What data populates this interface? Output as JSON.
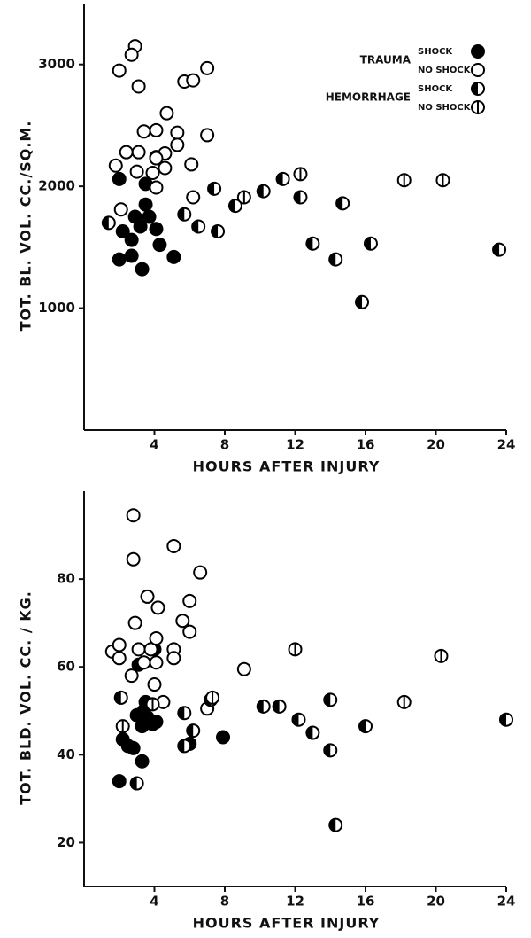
{
  "chart_data": [
    {
      "type": "scatter",
      "ylabel": "TOT. BL. VOL.   CC./SQ.M.",
      "xlabel": "HOURS AFTER INJURY",
      "xlim": [
        0,
        24
      ],
      "ylim": [
        0,
        3500
      ],
      "xticks": [
        4,
        8,
        12,
        16,
        20,
        24
      ],
      "yticks": [
        1000,
        2000,
        3000
      ],
      "legend": {
        "position": "upper right",
        "groups": [
          {
            "label": "TRAUMA",
            "entries": [
              "SHOCK",
              "NO SHOCK"
            ]
          },
          {
            "label": "HEMORRHAGE",
            "entries": [
              "SHOCK",
              "NO SHOCK"
            ]
          }
        ]
      },
      "series": [
        {
          "marker": "filled",
          "color": "#000000",
          "x": [
            2.0,
            2.2,
            2.7,
            2.9,
            3.2,
            3.3,
            2.0,
            3.5,
            3.5,
            3.7,
            4.1,
            4.1,
            4.3,
            5.1,
            2.7
          ],
          "values": [
            2060,
            1630,
            1430,
            1750,
            1670,
            1320,
            1400,
            2020,
            1850,
            1750,
            2240,
            1650,
            1520,
            1420,
            1560
          ]
        },
        {
          "marker": "open",
          "color": "#000000",
          "x": [
            2.9,
            2.7,
            2.0,
            3.1,
            4.7,
            5.3,
            4.1,
            3.4,
            5.7,
            6.2,
            7.0,
            7.0,
            5.3,
            4.6,
            4.1,
            3.1,
            2.4,
            1.8,
            3.0,
            4.6,
            6.1,
            4.1,
            6.2,
            2.1,
            3.9
          ],
          "values": [
            3150,
            3080,
            2950,
            2820,
            2600,
            2440,
            2460,
            2450,
            2860,
            2870,
            2970,
            2420,
            2340,
            2270,
            2230,
            2280,
            2280,
            2170,
            2120,
            2150,
            2180,
            1990,
            1910,
            1810,
            2110
          ]
        },
        {
          "marker": "half",
          "color": "#000000",
          "x": [
            1.4,
            5.7,
            6.5,
            7.6,
            7.4,
            8.6,
            10.2,
            11.3,
            12.3,
            13.0,
            14.3,
            14.7,
            16.3,
            15.8,
            23.6
          ],
          "values": [
            1700,
            1770,
            1670,
            1630,
            1980,
            1840,
            1960,
            2060,
            1910,
            1530,
            1400,
            1860,
            1530,
            1050,
            1480
          ]
        },
        {
          "marker": "bar",
          "color": "#000000",
          "x": [
            9.1,
            12.3,
            18.2,
            20.4
          ],
          "values": [
            1910,
            2100,
            2050,
            2050
          ]
        }
      ]
    },
    {
      "type": "scatter",
      "ylabel": "TOT. BLD. VOL.   CC. / KG.",
      "xlabel": "HOURS AFTER INJURY",
      "xlim": [
        0,
        24
      ],
      "ylim": [
        10,
        100
      ],
      "xticks": [
        4,
        8,
        12,
        16,
        20,
        24
      ],
      "yticks": [
        20,
        40,
        60,
        80
      ],
      "series": [
        {
          "marker": "filled",
          "color": "#000000",
          "x": [
            2.0,
            2.2,
            2.8,
            2.5,
            3.1,
            3.3,
            3.3,
            3.4,
            3.5,
            3.9,
            3.6,
            4.0,
            4.1,
            3.0,
            6.0,
            7.9
          ],
          "values": [
            34,
            43.5,
            41.5,
            42,
            60.5,
            38.5,
            46.5,
            50,
            52,
            47,
            48.5,
            64,
            47.5,
            49,
            42.5,
            44
          ]
        },
        {
          "marker": "open",
          "color": "#000000",
          "x": [
            2.8,
            2.8,
            5.1,
            6.6,
            3.6,
            4.2,
            6.0,
            5.6,
            6.0,
            2.9,
            1.6,
            2.0,
            2.0,
            3.1,
            3.8,
            4.1,
            5.1,
            5.1,
            2.7,
            3.4,
            4.1,
            4.0,
            4.5,
            7.0,
            9.1
          ],
          "values": [
            94.5,
            84.5,
            87.5,
            81.5,
            76,
            73.5,
            75,
            70.5,
            68,
            70,
            63.5,
            65,
            62,
            64,
            64,
            66.5,
            64,
            62,
            58,
            61,
            61,
            56,
            52,
            50.5,
            59.5
          ]
        },
        {
          "marker": "half",
          "color": "#000000",
          "x": [
            2.1,
            5.7,
            6.2,
            7.2,
            10.2,
            11.1,
            12.2,
            13.0,
            14.0,
            14.0,
            16.0,
            14.3,
            24.0,
            3.0,
            5.7
          ],
          "values": [
            53,
            42,
            45.5,
            52.5,
            51,
            51,
            48,
            45,
            52.5,
            41,
            46.5,
            24,
            48,
            33.5,
            49.5
          ]
        },
        {
          "marker": "bar",
          "color": "#000000",
          "x": [
            2.2,
            3.9,
            12.0,
            18.2,
            20.3,
            7.3
          ],
          "values": [
            46.5,
            51.5,
            64,
            52,
            62.5,
            53
          ]
        }
      ]
    }
  ]
}
